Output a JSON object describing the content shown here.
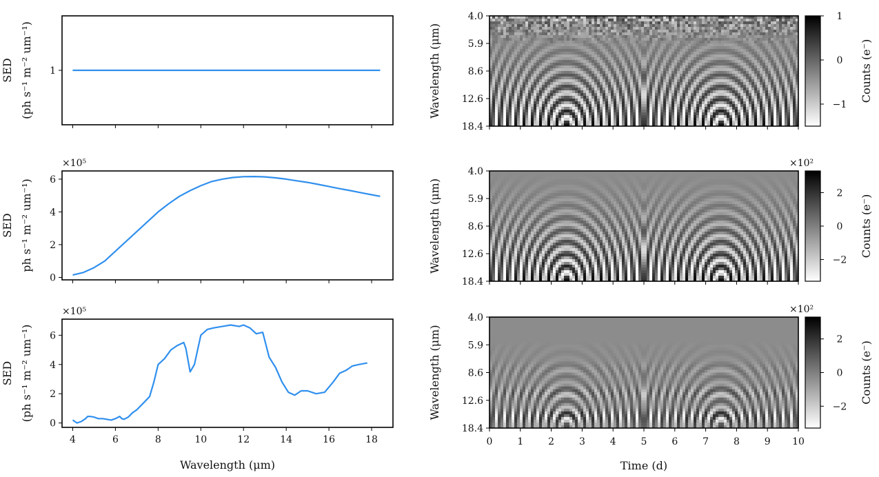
{
  "chart_data": [
    {
      "type": "line",
      "panel": "sed-top",
      "ylabel_line1": "SED",
      "ylabel_line2": "(ph s⁻¹ m⁻² um⁻¹)",
      "multiplier": "",
      "xlim": [
        3.5,
        19.0
      ],
      "ylim": [
        0.6,
        1.4
      ],
      "yticks": [
        1
      ],
      "ytick_labels": [
        "1"
      ],
      "xticks": [
        4,
        6,
        8,
        10,
        12,
        14,
        16,
        18
      ],
      "show_xtick_labels": false,
      "series": [
        {
          "color": "#2f8fee",
          "x": [
            4.0,
            18.4
          ],
          "y": [
            1,
            1
          ]
        }
      ]
    },
    {
      "type": "line",
      "panel": "sed-middle",
      "ylabel_line1": "SED",
      "ylabel_line2": "ph s⁻¹ m⁻² um⁻¹)",
      "multiplier": "×10⁵",
      "xlim": [
        3.5,
        19.0
      ],
      "ylim": [
        -0.15,
        6.5
      ],
      "yticks": [
        0,
        2,
        4,
        6
      ],
      "ytick_labels": [
        "0",
        "2",
        "4",
        "6"
      ],
      "xticks": [
        4,
        6,
        8,
        10,
        12,
        14,
        16,
        18
      ],
      "show_xtick_labels": false,
      "series": [
        {
          "color": "#2f8fee",
          "x": [
            4.0,
            4.5,
            5.0,
            5.5,
            6.0,
            6.5,
            7.0,
            7.5,
            8.0,
            8.5,
            9.0,
            9.5,
            10.0,
            10.5,
            11.0,
            11.5,
            12.0,
            12.5,
            13.0,
            13.5,
            14.0,
            14.5,
            15.0,
            15.5,
            16.0,
            16.5,
            17.0,
            17.5,
            18.0,
            18.4
          ],
          "y": [
            0.15,
            0.3,
            0.6,
            1.0,
            1.6,
            2.2,
            2.8,
            3.4,
            4.0,
            4.5,
            4.95,
            5.3,
            5.6,
            5.85,
            6.0,
            6.1,
            6.15,
            6.16,
            6.14,
            6.08,
            6.0,
            5.9,
            5.8,
            5.68,
            5.55,
            5.42,
            5.3,
            5.17,
            5.05,
            4.95
          ]
        }
      ]
    },
    {
      "type": "line",
      "panel": "sed-bottom",
      "ylabel_line1": "SED",
      "ylabel_line2": "(ph s⁻¹ m⁻² um⁻¹)",
      "multiplier": "×10⁵",
      "xlabel": "Wavelength (μm)",
      "xlim": [
        3.5,
        19.0
      ],
      "ylim": [
        -0.3,
        7.1
      ],
      "yticks": [
        0,
        2,
        4,
        6
      ],
      "ytick_labels": [
        "0",
        "2",
        "4",
        "6"
      ],
      "xticks": [
        4,
        6,
        8,
        10,
        12,
        14,
        16,
        18
      ],
      "xtick_labels": [
        "4",
        "6",
        "8",
        "10",
        "12",
        "14",
        "16",
        "18"
      ],
      "show_xtick_labels": true,
      "series": [
        {
          "color": "#2f8fee",
          "x": [
            4.0,
            4.2,
            4.4,
            4.6,
            4.7,
            4.8,
            5.0,
            5.2,
            5.4,
            5.6,
            5.8,
            6.0,
            6.2,
            6.3,
            6.4,
            6.6,
            6.8,
            7.0,
            7.2,
            7.4,
            7.6,
            7.8,
            8.0,
            8.3,
            8.6,
            8.9,
            9.2,
            9.3,
            9.5,
            9.7,
            10.0,
            10.3,
            10.6,
            11.0,
            11.4,
            11.8,
            12.0,
            12.3,
            12.6,
            12.9,
            13.2,
            13.5,
            13.8,
            14.1,
            14.4,
            14.7,
            15.0,
            15.4,
            15.8,
            16.2,
            16.5,
            16.8,
            17.1,
            17.4,
            17.8
          ],
          "y": [
            0.2,
            0.0,
            0.1,
            0.3,
            0.45,
            0.45,
            0.4,
            0.3,
            0.3,
            0.25,
            0.2,
            0.3,
            0.45,
            0.3,
            0.25,
            0.4,
            0.7,
            0.9,
            1.2,
            1.5,
            1.8,
            2.8,
            4.0,
            4.4,
            5.0,
            5.3,
            5.5,
            5.1,
            3.5,
            4.0,
            6.0,
            6.4,
            6.5,
            6.6,
            6.7,
            6.6,
            6.7,
            6.5,
            6.1,
            6.2,
            4.5,
            3.8,
            2.8,
            2.1,
            1.9,
            2.2,
            2.2,
            2.0,
            2.1,
            2.8,
            3.4,
            3.6,
            3.9,
            4.0,
            4.1
          ]
        }
      ]
    },
    {
      "type": "heatmap",
      "panel": "map-top",
      "ylabel": "Wavelength (μm)",
      "ytick_labels": [
        "4.0",
        "5.9",
        "8.6",
        "12.6",
        "18.4"
      ],
      "xlim": [
        0,
        10
      ],
      "xticks": [
        0,
        1,
        2,
        3,
        4,
        5,
        6,
        7,
        8,
        9,
        10
      ],
      "show_xtick_labels": false,
      "colormap": "gray (black = high, white = low)",
      "colorbar_label": "Counts (e⁻)",
      "colorbar_multiplier": "",
      "colorbar_range": [
        -1.5,
        1.0
      ],
      "colorbar_ticks": [
        1,
        0,
        -1
      ],
      "colorbar_tick_labels": [
        "1",
        "0",
        "−1"
      ],
      "noise_at_top": true
    },
    {
      "type": "heatmap",
      "panel": "map-middle",
      "ylabel": "Wavelength (μm)",
      "ytick_labels": [
        "4.0",
        "5.9",
        "8.6",
        "12.6",
        "18.4"
      ],
      "xlim": [
        0,
        10
      ],
      "xticks": [
        0,
        1,
        2,
        3,
        4,
        5,
        6,
        7,
        8,
        9,
        10
      ],
      "show_xtick_labels": false,
      "colormap": "gray (black = high, white = low)",
      "colorbar_label": "Counts (e⁻)",
      "colorbar_multiplier": "×10²",
      "colorbar_range": [
        -3.3,
        3.3
      ],
      "colorbar_ticks": [
        2,
        0,
        -2
      ],
      "colorbar_tick_labels": [
        "2",
        "0",
        "−2"
      ],
      "noise_at_top": false
    },
    {
      "type": "heatmap",
      "panel": "map-bottom",
      "ylabel": "Wavelength (μm)",
      "xlabel": "Time (d)",
      "ytick_labels": [
        "4.0",
        "5.9",
        "8.6",
        "12.6",
        "18.4"
      ],
      "xlim": [
        0,
        10
      ],
      "xticks": [
        0,
        1,
        2,
        3,
        4,
        5,
        6,
        7,
        8,
        9,
        10
      ],
      "xtick_labels": [
        "0",
        "1",
        "2",
        "3",
        "4",
        "5",
        "6",
        "7",
        "8",
        "9",
        "10"
      ],
      "show_xtick_labels": true,
      "colormap": "gray (black = high, white = low)",
      "colorbar_label": "Counts (e⁻)",
      "colorbar_multiplier": "×10²",
      "colorbar_range": [
        -3.3,
        3.3
      ],
      "colorbar_ticks": [
        2,
        0,
        -2
      ],
      "colorbar_tick_labels": [
        "2",
        "0",
        "−2"
      ],
      "noise_at_top": false
    }
  ]
}
